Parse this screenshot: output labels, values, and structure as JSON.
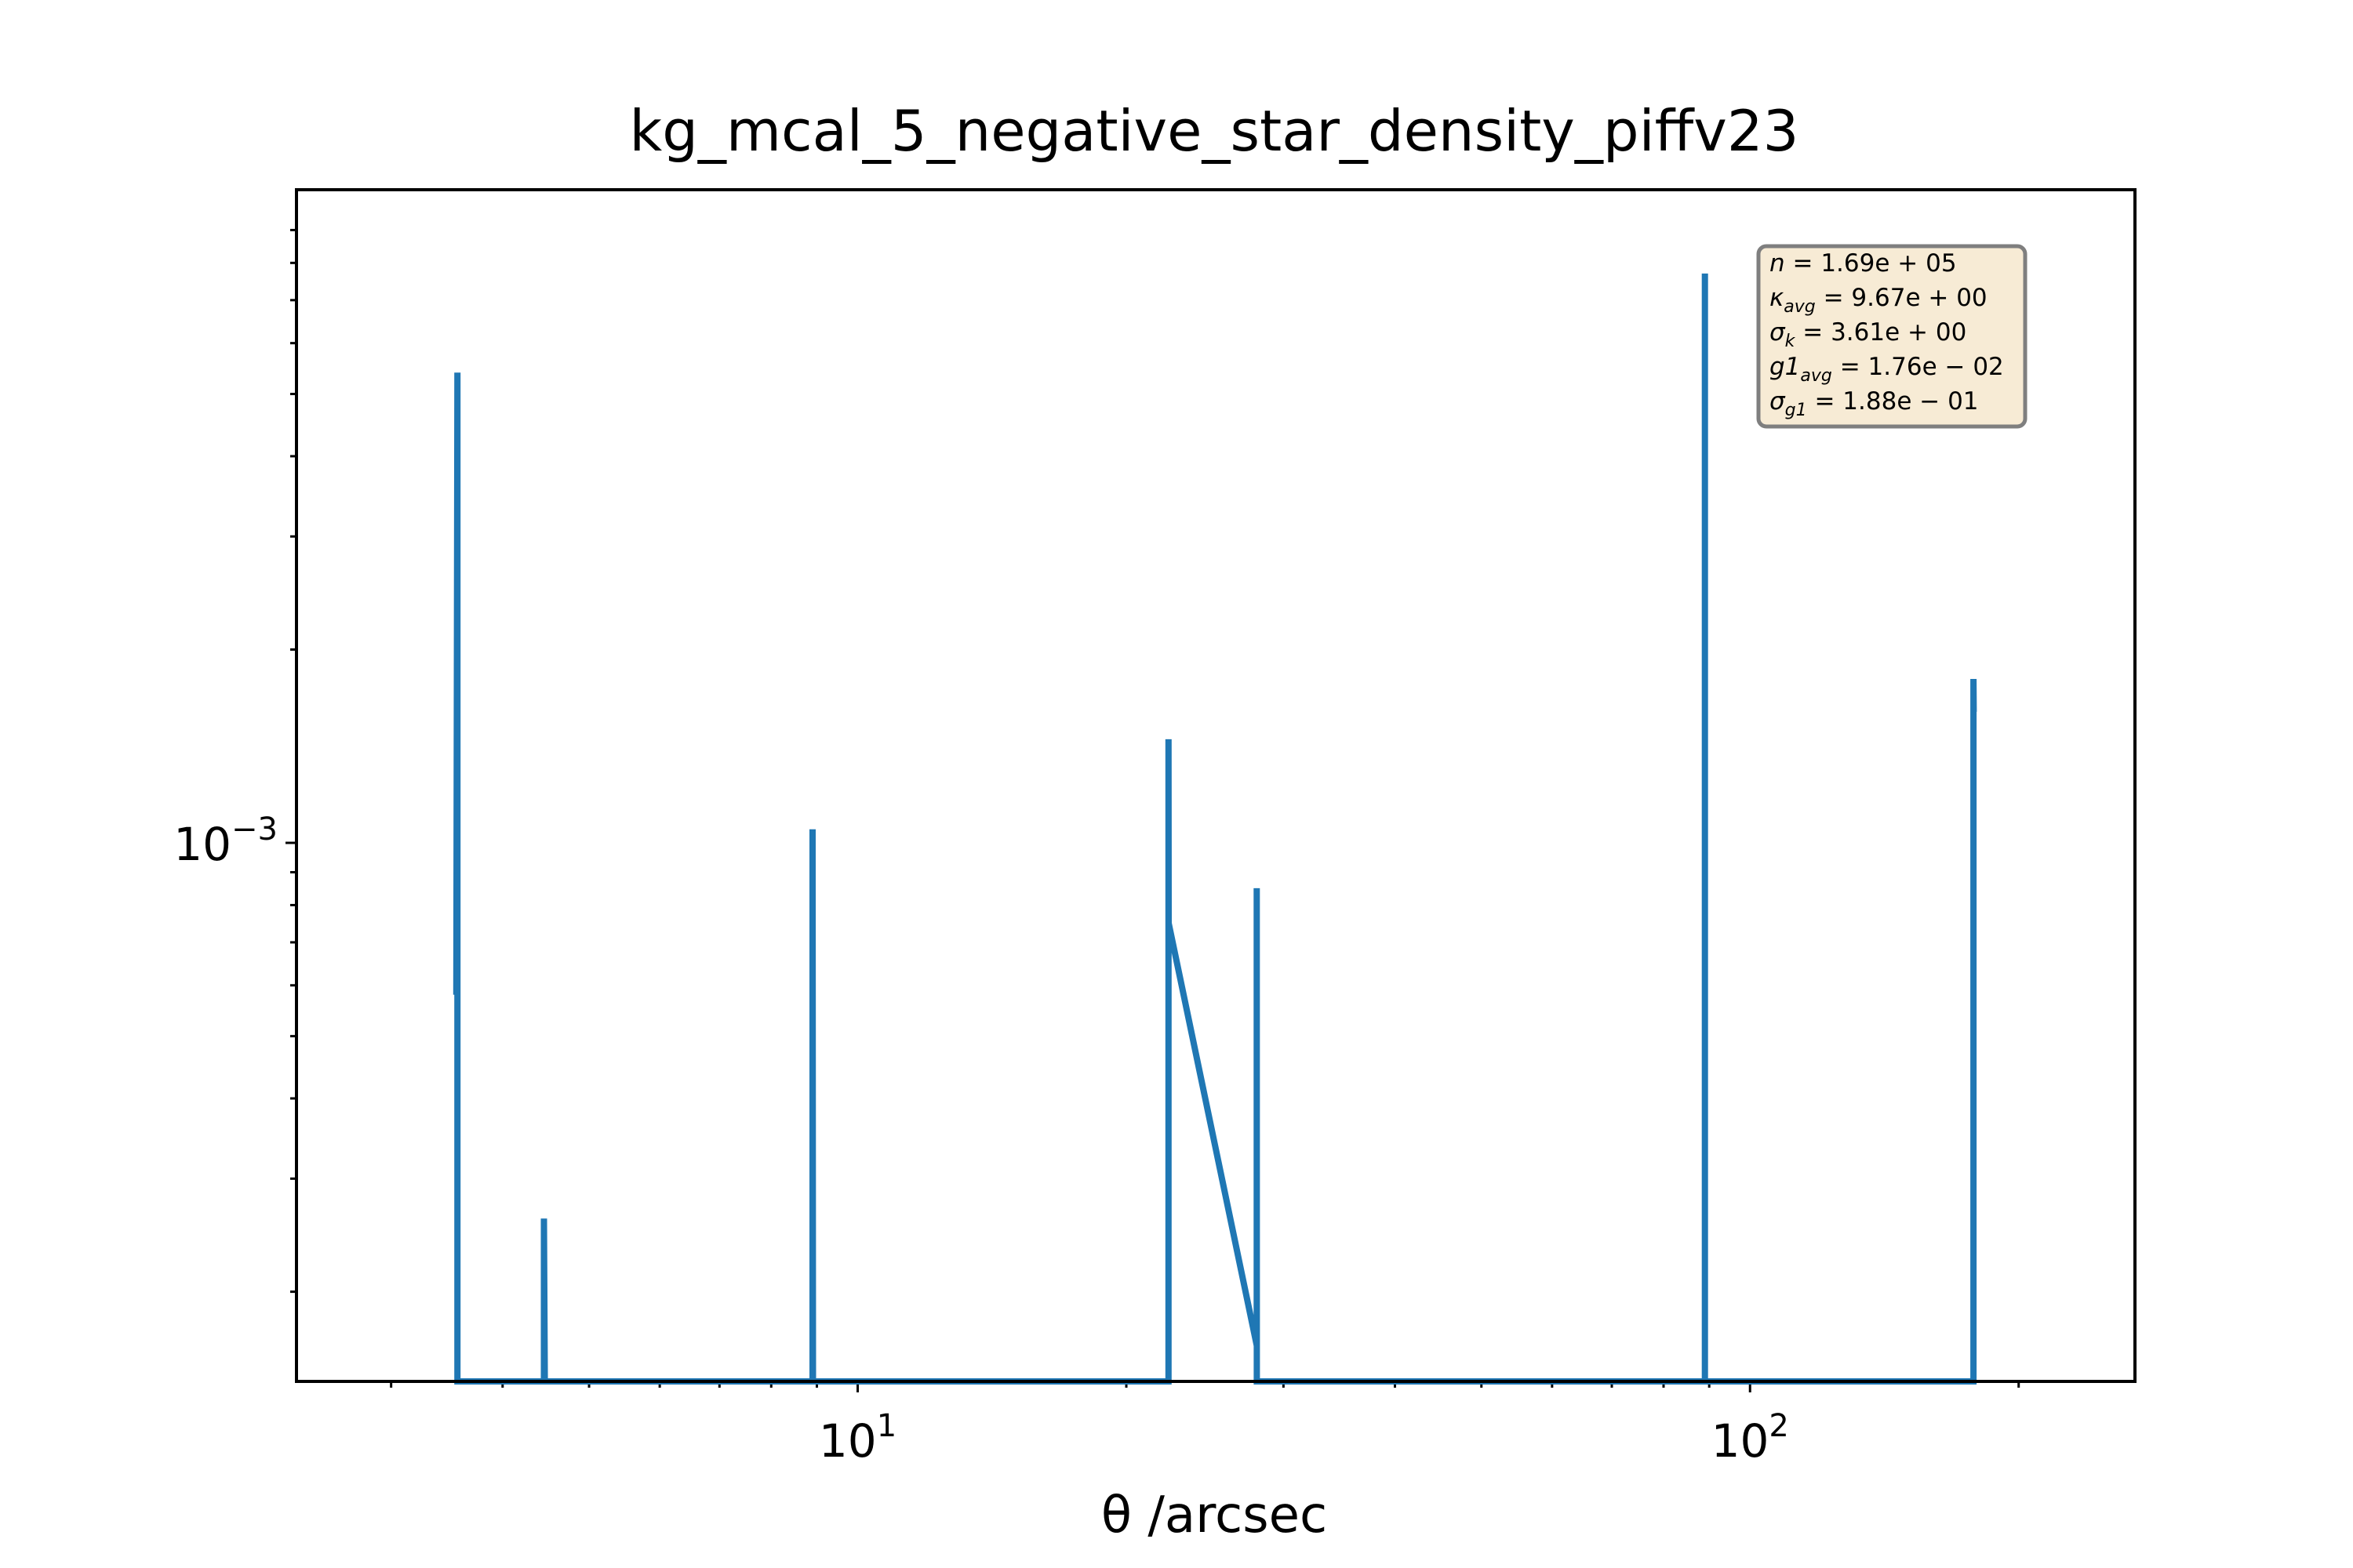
{
  "chart_data": {
    "type": "line",
    "title": "kg_mcal_5_negative_star_density_piffv23",
    "xlabel": "θ /arcsec",
    "ylabel": "",
    "xscale": "log",
    "yscale": "log",
    "xlim": [
      2.35,
      270
    ],
    "ylim": [
      0.000145,
      0.0104
    ],
    "x_ticks": [
      {
        "value": 10,
        "base": "10",
        "exp": "1"
      },
      {
        "value": 100,
        "base": "10",
        "exp": "2"
      }
    ],
    "y_ticks": [
      {
        "value": 0.001,
        "base": "10",
        "exp": "−3"
      }
    ],
    "grid": false,
    "line_color": "#1f77b4",
    "series": [
      {
        "points": [
          {
            "x": 3.55,
            "y": 0.00058
          },
          {
            "x": 3.56,
            "y": 0.0054
          },
          {
            "x": 3.56,
            "y": 0.0001
          },
          {
            "x": 4.45,
            "y": 0.0001
          },
          {
            "x": 4.45,
            "y": 0.00026
          },
          {
            "x": 4.46,
            "y": 0.0001
          },
          {
            "x": 8.9,
            "y": 0.0001
          },
          {
            "x": 8.9,
            "y": 0.00105
          },
          {
            "x": 8.91,
            "y": 0.0001
          },
          {
            "x": 22.3,
            "y": 0.0001
          },
          {
            "x": 22.3,
            "y": 0.00145
          },
          {
            "x": 22.31,
            "y": 0.00075
          },
          {
            "x": 28.0,
            "y": 0.000165
          },
          {
            "x": 28.0,
            "y": 0.00085
          },
          {
            "x": 28.01,
            "y": 0.0001
          },
          {
            "x": 89.0,
            "y": 0.0001
          },
          {
            "x": 89.0,
            "y": 0.0077
          },
          {
            "x": 89.01,
            "y": 0.0001
          },
          {
            "x": 178.0,
            "y": 0.0001
          },
          {
            "x": 178.0,
            "y": 0.0018
          },
          {
            "x": 178.1,
            "y": 0.0016
          }
        ]
      }
    ],
    "annotation": {
      "lines": [
        {
          "sym": "n",
          "sub": "",
          "val": " = 1.69e + 05"
        },
        {
          "sym": "κ",
          "sub": "avg",
          "val": " = 9.67e + 00"
        },
        {
          "sym": "σ",
          "sub": "k",
          "val": " = 3.61e + 00"
        },
        {
          "sym": "g1",
          "sub": "avg",
          "val": " = 1.76e − 02"
        },
        {
          "sym": "σ",
          "sub": "g1",
          "val": " = 1.88e − 01"
        }
      ],
      "box_color": "#f7ebd5",
      "border_color": "#7f7f7f"
    }
  }
}
